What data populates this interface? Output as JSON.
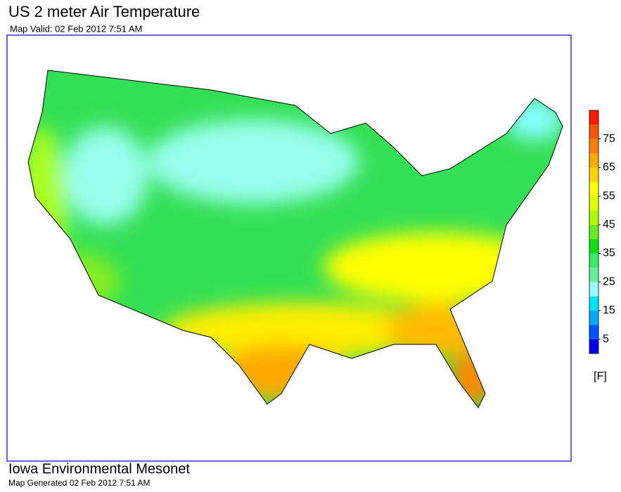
{
  "header": {
    "title": "US 2 meter Air Temperature",
    "subtitle": "Map Valid: 02 Feb 2012 7:51 AM"
  },
  "colorbar": {
    "range": [
      0,
      85
    ],
    "colors": [
      "#0000e6",
      "#0055ff",
      "#00aaff",
      "#00e5ff",
      "#99ffff",
      "#66f0a0",
      "#33ee66",
      "#11dd11",
      "#66ee22",
      "#aaff00",
      "#dfff00",
      "#ffff00",
      "#ffd500",
      "#ffaa00",
      "#ff7f00",
      "#ff5500",
      "#ff1a00"
    ],
    "ticks": [
      5,
      15,
      25,
      35,
      45,
      55,
      65,
      75
    ],
    "unit": "[F]"
  },
  "footer": {
    "title": "Iowa Environmental Mesonet",
    "subtitle": "Map Generated 02 Feb 2012 7:51 AM"
  }
}
